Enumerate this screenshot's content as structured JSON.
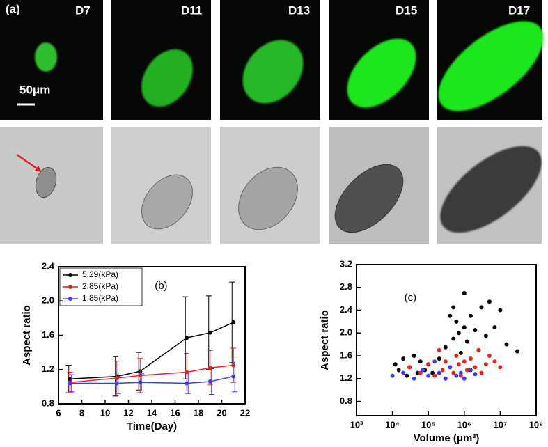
{
  "panel_a": {
    "label": "(a)",
    "days": [
      "D7",
      "D11",
      "D13",
      "D15",
      "D17"
    ],
    "scale_bar": "50μm"
  },
  "chart_data": [
    {
      "type": "line",
      "annotation": "(b)",
      "x_label": "Time(Day)",
      "y_label": "Aspect ratio",
      "x": [
        7,
        11,
        13,
        17,
        19,
        21
      ],
      "series": [
        {
          "name": "5.29(kPa)",
          "color": "#000000",
          "values": [
            1.09,
            1.12,
            1.18,
            1.57,
            1.63,
            1.75
          ],
          "errors": [
            0.16,
            0.23,
            0.22,
            0.48,
            0.43,
            0.47
          ]
        },
        {
          "name": "2.85(kPa)",
          "color": "#e8221c",
          "values": [
            1.05,
            1.1,
            1.13,
            1.17,
            1.22,
            1.25
          ],
          "errors": [
            0.12,
            0.2,
            0.2,
            0.22,
            0.2,
            0.2
          ]
        },
        {
          "name": "1.85(kPa)",
          "color": "#3b3bf5",
          "values": [
            1.04,
            1.04,
            1.05,
            1.04,
            1.06,
            1.12
          ],
          "errors": [
            0.1,
            0.12,
            0.1,
            0.12,
            0.15,
            0.18
          ]
        }
      ],
      "xlim": [
        6,
        22
      ],
      "xticks": [
        6,
        8,
        10,
        12,
        14,
        16,
        18,
        20,
        22
      ],
      "ylim": [
        0.8,
        2.4
      ],
      "yticks": [
        0.8,
        1.2,
        1.6,
        {
          "value": 2.0,
          "label": "2.0"
        },
        2.4
      ],
      "legend": "upper left"
    },
    {
      "type": "scatter",
      "annotation": "(c)",
      "x_label": "Volume (μm³)",
      "y_label": "Aspect ratio",
      "xscale": "log",
      "series": [
        {
          "color": "#000000",
          "x": [
            12000,
            15000,
            20000,
            25000,
            30000,
            40000,
            50000,
            60000,
            80000,
            100000,
            130000,
            200000,
            300000,
            400000,
            500000,
            500000,
            600000,
            700000,
            800000,
            1000000,
            1000000,
            1200000,
            1500000,
            2000000,
            2500000,
            3000000,
            4000000,
            5000000,
            7000000,
            10000000,
            15000000,
            30000000
          ],
          "values": [
            1.45,
            1.35,
            1.55,
            1.25,
            1.4,
            1.6,
            1.3,
            1.5,
            1.35,
            1.45,
            1.3,
            1.55,
            1.75,
            2.3,
            2.45,
            1.9,
            2.2,
            2.0,
            1.65,
            2.7,
            2.1,
            1.85,
            2.3,
            2.05,
            1.7,
            2.45,
            1.95,
            2.55,
            2.1,
            2.4,
            1.8,
            1.68
          ]
        },
        {
          "color": "#e8221c",
          "x": [
            30000,
            60000,
            100000,
            150000,
            200000,
            250000,
            300000,
            400000,
            500000,
            600000,
            700000,
            800000,
            1000000,
            1200000,
            1500000,
            2000000,
            2500000,
            3000000,
            4000000,
            5000000,
            7000000,
            10000000
          ],
          "values": [
            1.4,
            1.3,
            1.45,
            1.25,
            1.7,
            1.35,
            1.5,
            1.4,
            1.3,
            1.6,
            1.45,
            1.25,
            1.5,
            1.35,
            1.55,
            1.4,
            1.7,
            1.3,
            1.45,
            1.6,
            1.5,
            1.4
          ]
        },
        {
          "color": "#3b3bf5",
          "x": [
            10000,
            20000,
            40000,
            70000,
            100000,
            150000,
            200000,
            300000,
            400000,
            600000,
            800000,
            1000000,
            1500000,
            2000000
          ],
          "values": [
            1.25,
            1.3,
            1.2,
            1.35,
            1.25,
            1.5,
            1.3,
            1.2,
            1.4,
            1.25,
            1.3,
            1.2,
            1.35,
            1.28
          ]
        }
      ],
      "xlim": [
        1000,
        100000000
      ],
      "xticks": [
        {
          "value": 1000,
          "label": "10³"
        },
        {
          "value": 10000,
          "label": "10⁴"
        },
        {
          "value": 100000,
          "label": "10⁵"
        },
        {
          "value": 1000000,
          "label": "10⁶"
        },
        {
          "value": 10000000,
          "label": "10⁷"
        },
        {
          "value": 100000000,
          "label": "10⁸"
        }
      ],
      "ylim": [
        0.55,
        3.2
      ],
      "yticks": [
        0.8,
        1.2,
        1.6,
        {
          "value": 2.0,
          "label": "2.0"
        },
        2.4,
        2.8,
        3.2
      ]
    }
  ]
}
